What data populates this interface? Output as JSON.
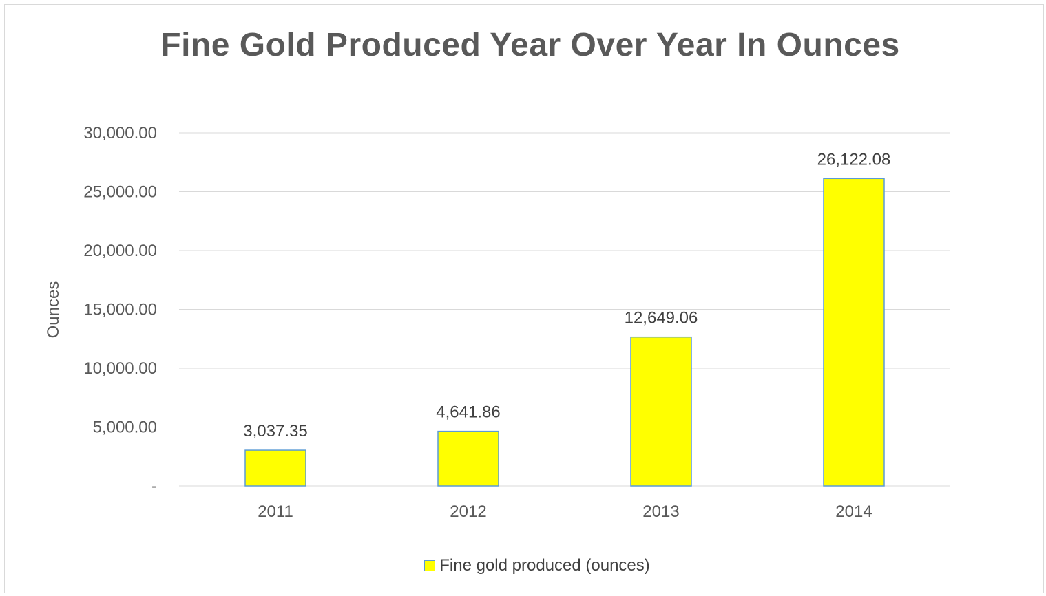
{
  "chart_data": {
    "type": "bar",
    "title": "Fine Gold Produced Year Over Year In Ounces",
    "ylabel": "Ounces",
    "xlabel": "",
    "categories": [
      "2011",
      "2012",
      "2013",
      "2014"
    ],
    "series": [
      {
        "name": "Fine gold produced (ounces)",
        "values": [
          3037.35,
          4641.86,
          12649.06,
          26122.08
        ],
        "data_labels": [
          "3,037.35",
          "4,641.86",
          "12,649.06",
          "26,122.08"
        ],
        "color": "#ffff00",
        "border_color": "#5b9bd5"
      }
    ],
    "ylim": [
      0,
      30000
    ],
    "y_ticks": [
      0,
      5000,
      10000,
      15000,
      20000,
      25000,
      30000
    ],
    "y_tick_labels": [
      "-",
      "5,000.00",
      "10,000.00",
      "15,000.00",
      "20,000.00",
      "25,000.00",
      "30,000.00"
    ],
    "grid": true,
    "legend_position": "bottom"
  }
}
